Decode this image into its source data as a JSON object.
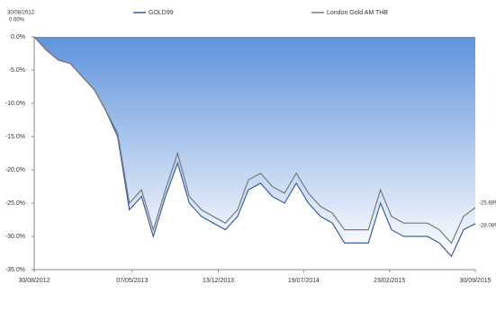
{
  "chart_data": {
    "type": "line",
    "x": [
      "2012-08-30",
      "2012-09-30",
      "2012-10-31",
      "2012-11-30",
      "2012-12-31",
      "2013-01-31",
      "2013-02-28",
      "2013-03-31",
      "2013-04-30",
      "2013-05-31",
      "2013-06-30",
      "2013-07-31",
      "2013-08-31",
      "2013-09-30",
      "2013-10-31",
      "2013-11-30",
      "2013-12-31",
      "2014-01-31",
      "2014-02-28",
      "2014-03-31",
      "2014-04-30",
      "2014-05-31",
      "2014-06-30",
      "2014-07-31",
      "2014-08-31",
      "2014-09-30",
      "2014-10-31",
      "2014-11-30",
      "2014-12-31",
      "2015-01-31",
      "2015-02-28",
      "2015-03-31",
      "2015-04-30",
      "2015-05-31",
      "2015-06-30",
      "2015-07-31",
      "2015-08-31",
      "2015-09-30"
    ],
    "series": [
      {
        "name": "GOLD99",
        "color": "#3b5e9c",
        "fill": true,
        "values": [
          0,
          -2,
          -3.5,
          -4,
          -6,
          -8,
          -11,
          -15,
          -26,
          -24,
          -30,
          -24,
          -19,
          -25,
          -27,
          -28,
          -29,
          -27,
          -23,
          -22,
          -24,
          -25,
          -22,
          -25,
          -27,
          -28,
          -31,
          -31,
          -31,
          -25,
          -29,
          -30,
          -30,
          -30,
          -31,
          -33,
          -29,
          -28.08
        ]
      },
      {
        "name": "London Gold AM THB",
        "color": "#7a7a7a",
        "values": [
          0,
          -2,
          -3.5,
          -4,
          -6,
          -8,
          -11,
          -14.5,
          -25,
          -23,
          -29,
          -23,
          -17.5,
          -24,
          -26,
          -27,
          -28,
          -26,
          -21.5,
          -20.5,
          -22.5,
          -23.5,
          -20.5,
          -23.5,
          -25.5,
          -26.5,
          -29,
          -29,
          -29,
          -23,
          -27,
          -28,
          -28,
          -28,
          -29,
          -31,
          -27,
          -25.68
        ]
      }
    ],
    "xlim": [
      "2012-08-30",
      "2015-09-30"
    ],
    "xticks": [
      {
        "value": "2012-08-30",
        "label": "30/08/2012"
      },
      {
        "value": "2013-05-07",
        "label": "07/05/2013"
      },
      {
        "value": "2013-12-13",
        "label": "13/12/2013"
      },
      {
        "value": "2014-07-19",
        "label": "19/07/2014"
      },
      {
        "value": "2015-02-23",
        "label": "23/02/2015"
      },
      {
        "value": "2015-09-30",
        "label": "30/09/2015"
      }
    ],
    "ylim": [
      -35,
      0
    ],
    "yticks": [
      {
        "value": 0,
        "label": "0.0%"
      },
      {
        "value": -5,
        "label": "-5.0%"
      },
      {
        "value": -10,
        "label": "-10.0%"
      },
      {
        "value": -15,
        "label": "-15.0%"
      },
      {
        "value": -20,
        "label": "-20.0%"
      },
      {
        "value": -25,
        "label": "-25.0%"
      },
      {
        "value": -30,
        "label": "-30.0%"
      },
      {
        "value": -35,
        "label": "-35.0%"
      }
    ],
    "annotations": [
      "30/08/2012",
      "0.00%",
      "-25.68%",
      "-28.08%"
    ]
  }
}
